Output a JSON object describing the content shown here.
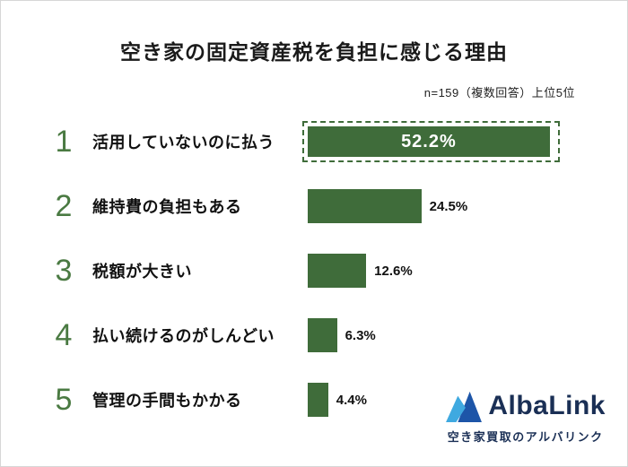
{
  "title": "空き家の固定資産税を負担に感じる理由",
  "subtitle": "n=159（複数回答）上位5位",
  "chart_data": {
    "type": "bar",
    "orientation": "horizontal",
    "title": "空き家の固定資産税を負担に感じる理由",
    "note": "n=159（複数回答）上位5位",
    "categories": [
      "活用していないのに払う",
      "維持費の負担もある",
      "税額が大きい",
      "払い続けるのがしんどい",
      "管理の手間もかかる"
    ],
    "values": [
      52.2,
      24.5,
      12.6,
      6.3,
      4.4
    ],
    "value_labels": [
      "52.2%",
      "24.5%",
      "12.6%",
      "6.3%",
      "4.4%"
    ],
    "highlight_index": 0,
    "xlim": [
      0,
      55
    ],
    "legend": "none",
    "grid": "off"
  },
  "rows": [
    {
      "rank": "1",
      "label": "活用していないのに払う",
      "value": 52.2,
      "pct": "52.2%",
      "highlight": true
    },
    {
      "rank": "2",
      "label": "維持費の負担もある",
      "value": 24.5,
      "pct": "24.5%",
      "highlight": false
    },
    {
      "rank": "3",
      "label": "税額が大きい",
      "value": 12.6,
      "pct": "12.6%",
      "highlight": false
    },
    {
      "rank": "4",
      "label": "払い続けるのがしんどい",
      "value": 6.3,
      "pct": "6.3%",
      "highlight": false
    },
    {
      "rank": "5",
      "label": "管理の手間もかかる",
      "value": 4.4,
      "pct": "4.4%",
      "highlight": false
    }
  ],
  "logo": {
    "name": "AlbaLink",
    "tagline": "空き家買取のアルバリンク"
  },
  "colors": {
    "bar_green": "#3f6c3a",
    "rank_green": "#4a7a42",
    "logo_navy": "#1a2f55",
    "logo_blue_dark": "#1d55a8",
    "logo_blue_light": "#3fa9e0"
  }
}
